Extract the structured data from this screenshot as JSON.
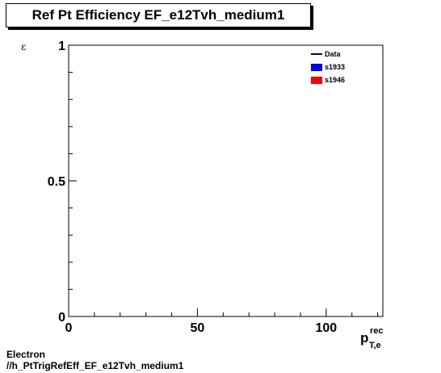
{
  "title": "Ref Pt Efficiency EF_e12Tvh_medium1",
  "ylabel": "ε",
  "xlabel_main": "p",
  "xlabel_sup": "rec",
  "xlabel_sub": "T,e",
  "footer": {
    "line1": "Electron",
    "line2": "//h_PtTrigRefEff_EF_e12Tvh_medium1"
  },
  "chart_data": {
    "type": "line",
    "title": "Ref Pt Efficiency EF_e12Tvh_medium1",
    "xlabel": "p_T,e^rec",
    "ylabel": "ε",
    "xlim": [
      0,
      122
    ],
    "ylim": [
      0,
      1
    ],
    "x_ticks": [
      "0",
      "50",
      "100"
    ],
    "y_ticks": [
      "0",
      "0.5",
      "1"
    ],
    "grid": false,
    "legend_position": "top-right",
    "series": [
      {
        "name": "Data",
        "color": "#00008b",
        "style": "line",
        "values": []
      },
      {
        "name": "s1933",
        "color": "#0000ff",
        "style": "fill",
        "values": []
      },
      {
        "name": "s1946",
        "color": "#ff0000",
        "style": "fill",
        "values": []
      }
    ]
  }
}
